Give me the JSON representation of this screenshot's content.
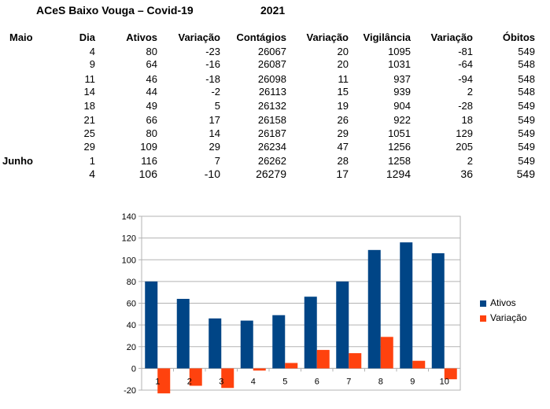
{
  "title": {
    "left": "ACeS Baixo Vouga –  Covid-19",
    "year": "2021"
  },
  "table": {
    "headers": [
      "Maio",
      "Dia",
      "Ativos",
      "Variação",
      "Contágios",
      "Variação",
      "Vigilância",
      "Variação",
      "Óbitos"
    ],
    "rows": [
      {
        "month": "",
        "cells": [
          "4",
          "80",
          "-23",
          "26067",
          "20",
          "1095",
          "-81",
          "549"
        ]
      },
      {
        "month": "",
        "cells": [
          "9",
          "64",
          "-16",
          "26087",
          "20",
          "1031",
          "-64",
          "548"
        ]
      },
      {
        "month": "",
        "cells": [
          "11",
          "46",
          "-18",
          "26098",
          "11",
          "937",
          "-94",
          "548"
        ]
      },
      {
        "month": "",
        "cells": [
          "14",
          "44",
          "-2",
          "26113",
          "15",
          "939",
          "2",
          "548"
        ]
      },
      {
        "month": "",
        "cells": [
          "18",
          "49",
          "5",
          "26132",
          "19",
          "904",
          "-28",
          "549"
        ]
      },
      {
        "month": "",
        "cells": [
          "21",
          "66",
          "17",
          "26158",
          "26",
          "922",
          "18",
          "549"
        ]
      },
      {
        "month": "",
        "cells": [
          "25",
          "80",
          "14",
          "26187",
          "29",
          "1051",
          "129",
          "549"
        ]
      },
      {
        "month": "",
        "cells": [
          "29",
          "109",
          "29",
          "26234",
          "47",
          "1256",
          "205",
          "549"
        ]
      },
      {
        "month": "Junho",
        "cells": [
          "1",
          "116",
          "7",
          "26262",
          "28",
          "1258",
          "2",
          "549"
        ]
      },
      {
        "month": "",
        "cells": [
          "4",
          "106",
          "-10",
          "26279",
          "17",
          "1294",
          "36",
          "549"
        ]
      }
    ]
  },
  "chart_data": {
    "type": "bar",
    "categories": [
      "1",
      "2",
      "3",
      "4",
      "5",
      "6",
      "7",
      "8",
      "9",
      "10"
    ],
    "series": [
      {
        "name": "Ativos",
        "color": "#004586",
        "values": [
          80,
          64,
          46,
          44,
          49,
          66,
          80,
          109,
          116,
          106
        ]
      },
      {
        "name": "Variação",
        "color": "#ff420e",
        "values": [
          -23,
          -16,
          -18,
          -2,
          5,
          17,
          14,
          29,
          7,
          -10
        ]
      }
    ],
    "ylim": [
      -20,
      140
    ],
    "yticks": [
      "-20",
      "0",
      "20",
      "40",
      "60",
      "80",
      "100",
      "120",
      "140"
    ],
    "grid": true,
    "legend": "right"
  }
}
